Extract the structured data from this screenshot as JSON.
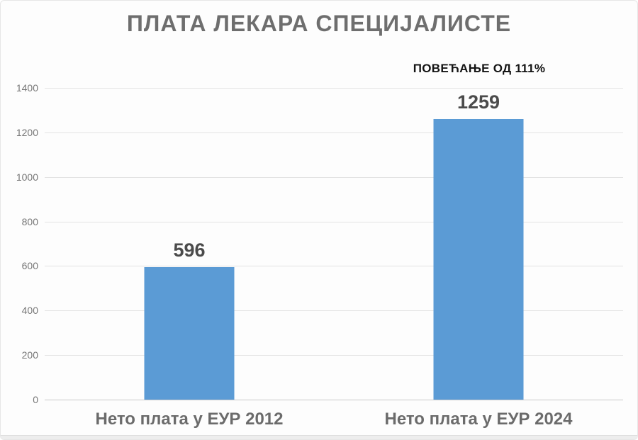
{
  "title": "ПЛАТА ЛЕКАРА СПЕЦИЈАЛИСТЕ",
  "annotation": "ПОВЕЋАЊЕ ОД 111%",
  "chart_data": {
    "type": "bar",
    "title": "ПЛАТА ЛЕКАРА СПЕЦИЈАЛИСТЕ",
    "annotation": "ПОВЕЋАЊЕ ОД 111%",
    "categories": [
      "Нето плата у ЕУР 2012",
      "Нето плата у ЕУР 2024"
    ],
    "values": [
      596,
      1259
    ],
    "value_labels": [
      "596",
      "1259"
    ],
    "xlabel": "",
    "ylabel": "",
    "ylim": [
      0,
      1400
    ],
    "ytick_step": 200,
    "yticks": [
      0,
      200,
      400,
      600,
      800,
      1000,
      1200,
      1400
    ],
    "grid": true,
    "legend_position": "none",
    "bar_color": "#5B9BD5"
  },
  "colors": {
    "background": "#fdfdfd",
    "bar": "#5B9BD5",
    "title_text": "#6e6e6e",
    "annotation_text": "#141414",
    "value_label_text": "#4b4b4b",
    "category_label_text": "#6b6b6b",
    "tick_text": "#767676",
    "gridline": "#e3e3e3",
    "baseline": "#c8c8c8"
  }
}
